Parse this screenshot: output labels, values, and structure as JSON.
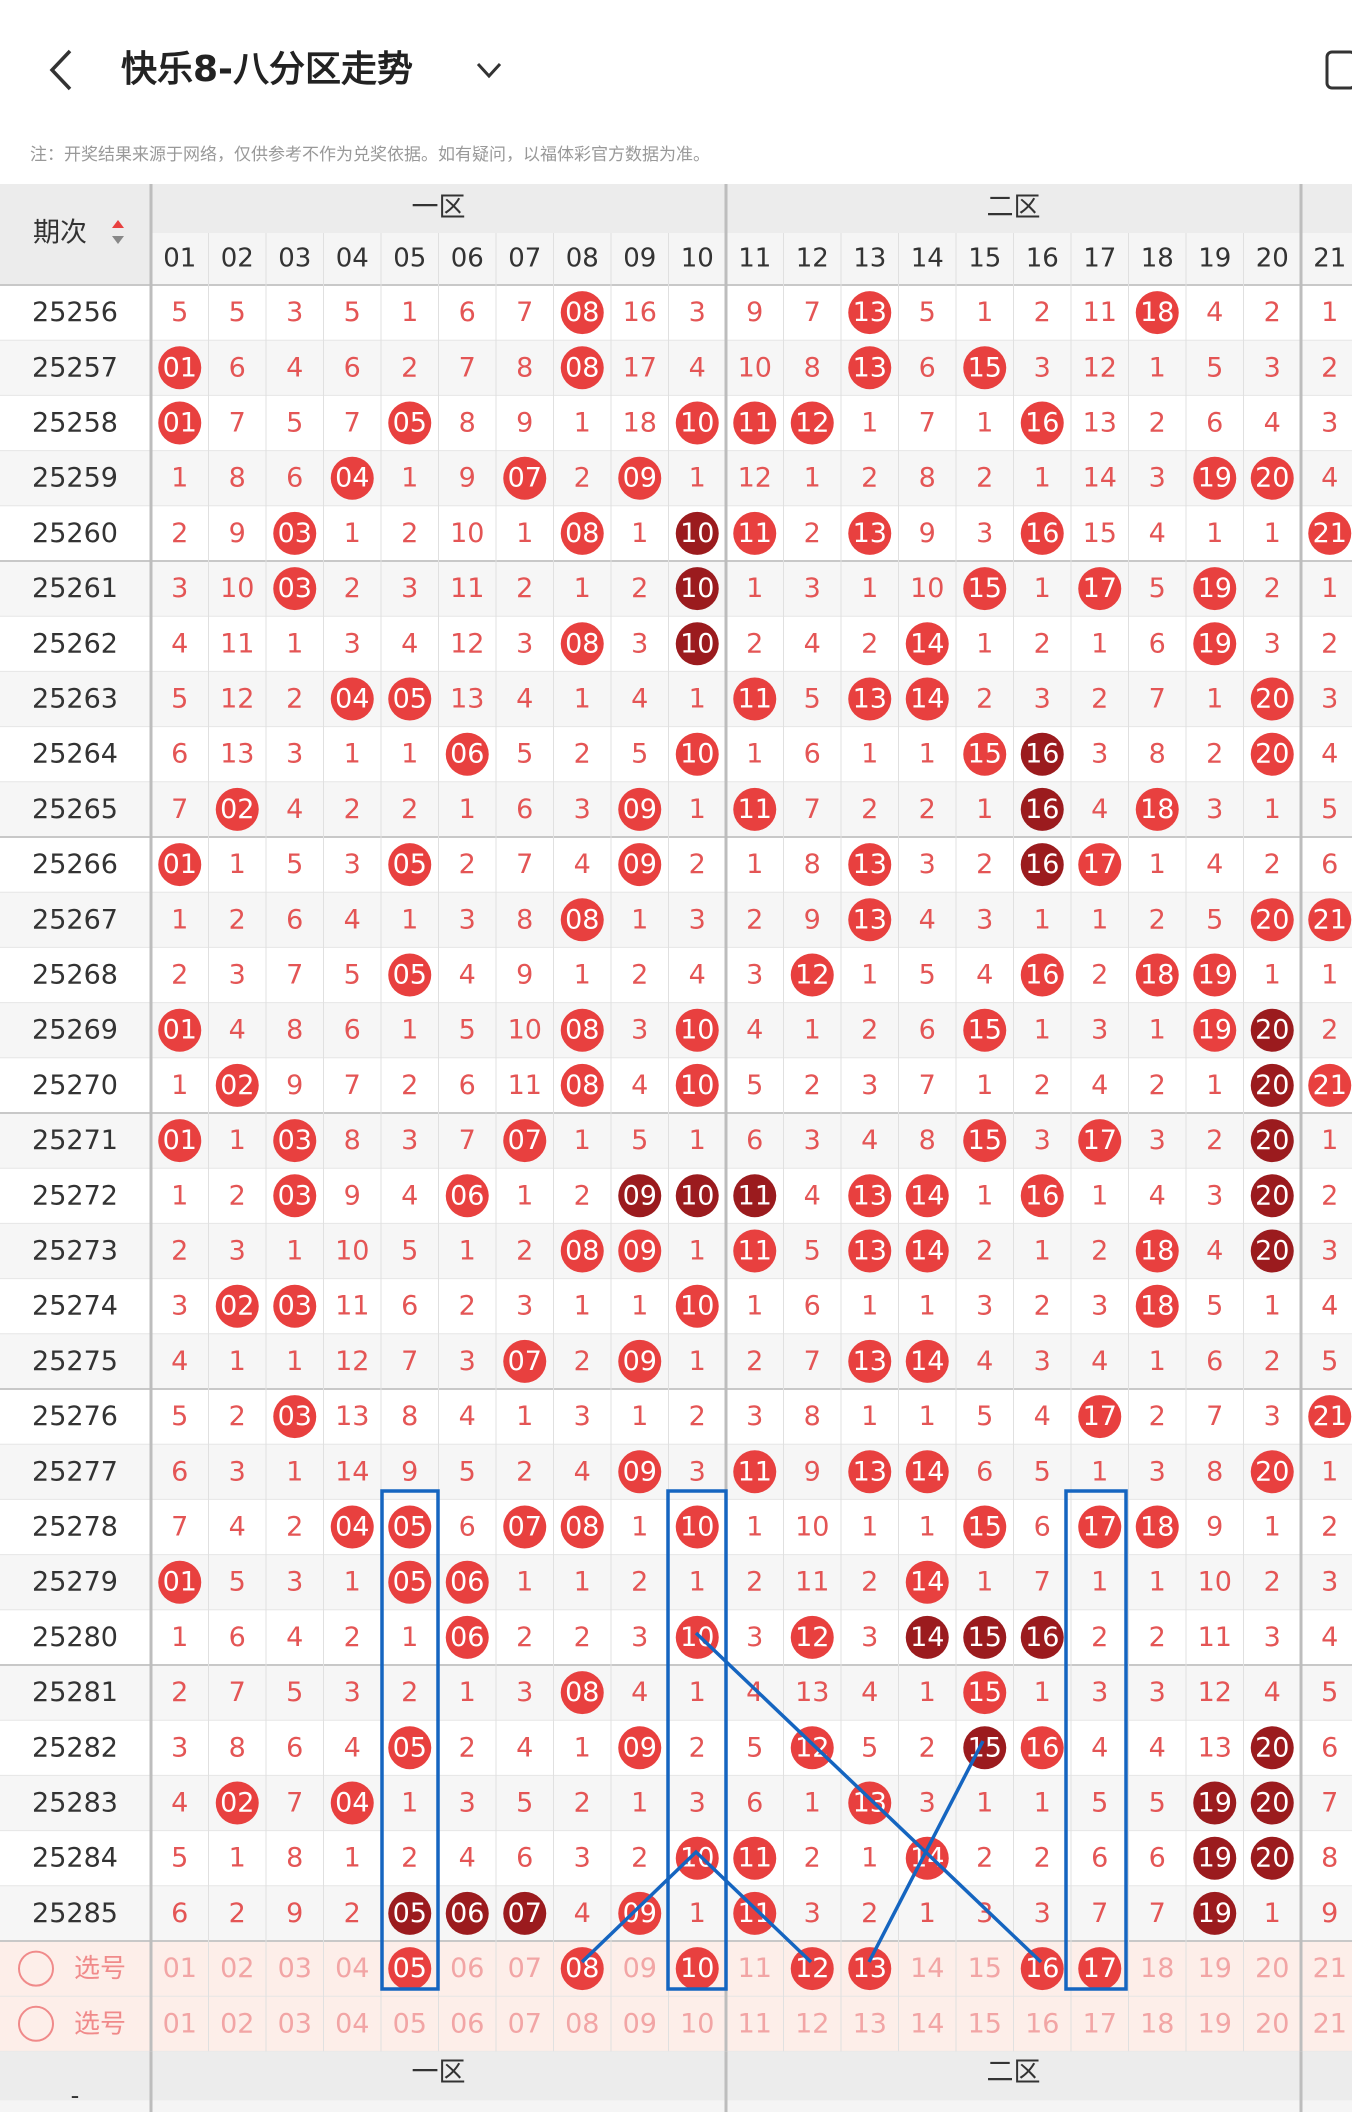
{
  "header": {
    "title": "快乐8-八分区走势",
    "note": "注：开奖结果来源于网络，仅供参考不作为兑奖依据。如有疑问，以福体彩官方数据为准。"
  },
  "table": {
    "period_label": "期次",
    "zones": [
      "一区",
      "二区"
    ],
    "columns": [
      "01",
      "02",
      "03",
      "04",
      "05",
      "06",
      "07",
      "08",
      "09",
      "10",
      "11",
      "12",
      "13",
      "14",
      "15",
      "16",
      "17",
      "18",
      "19",
      "20",
      "21"
    ],
    "rows": [
      {
        "period": "25256",
        "cells": [
          "5",
          "5",
          "3",
          "5",
          "1",
          "6",
          "7",
          "08",
          "16",
          "3",
          "9",
          "7",
          "13",
          "5",
          "1",
          "2",
          "11",
          "18",
          "4",
          "2",
          "1"
        ],
        "dark": []
      },
      {
        "period": "25257",
        "cells": [
          "01",
          "6",
          "4",
          "6",
          "2",
          "7",
          "8",
          "08",
          "17",
          "4",
          "10",
          "8",
          "13",
          "6",
          "15",
          "3",
          "12",
          "1",
          "5",
          "3",
          "2"
        ],
        "dark": []
      },
      {
        "period": "25258",
        "cells": [
          "01",
          "7",
          "5",
          "7",
          "05",
          "8",
          "9",
          "1",
          "18",
          "10",
          "11",
          "12",
          "1",
          "7",
          "1",
          "16",
          "13",
          "2",
          "6",
          "4",
          "3"
        ],
        "dark": []
      },
      {
        "period": "25259",
        "cells": [
          "1",
          "8",
          "6",
          "04",
          "1",
          "9",
          "07",
          "2",
          "09",
          "1",
          "12",
          "1",
          "2",
          "8",
          "2",
          "1",
          "14",
          "3",
          "19",
          "20",
          "4"
        ],
        "dark": []
      },
      {
        "period": "25260",
        "cells": [
          "2",
          "9",
          "03",
          "1",
          "2",
          "10",
          "1",
          "08",
          "1",
          "10",
          "11",
          "2",
          "13",
          "9",
          "3",
          "16",
          "15",
          "4",
          "1",
          "1",
          "21"
        ],
        "dark": [
          "10"
        ]
      },
      {
        "period": "25261",
        "cells": [
          "3",
          "10",
          "03",
          "2",
          "3",
          "11",
          "2",
          "1",
          "2",
          "10",
          "1",
          "3",
          "1",
          "10",
          "15",
          "1",
          "17",
          "5",
          "19",
          "2",
          "1"
        ],
        "dark": [
          "10"
        ]
      },
      {
        "period": "25262",
        "cells": [
          "4",
          "11",
          "1",
          "3",
          "4",
          "12",
          "3",
          "08",
          "3",
          "10",
          "2",
          "4",
          "2",
          "14",
          "1",
          "2",
          "1",
          "6",
          "19",
          "3",
          "2"
        ],
        "dark": [
          "10"
        ]
      },
      {
        "period": "25263",
        "cells": [
          "5",
          "12",
          "2",
          "04",
          "05",
          "13",
          "4",
          "1",
          "4",
          "1",
          "11",
          "5",
          "13",
          "14",
          "2",
          "3",
          "2",
          "7",
          "1",
          "20",
          "3"
        ],
        "dark": []
      },
      {
        "period": "25264",
        "cells": [
          "6",
          "13",
          "3",
          "1",
          "1",
          "06",
          "5",
          "2",
          "5",
          "10",
          "1",
          "6",
          "1",
          "1",
          "15",
          "16",
          "3",
          "8",
          "2",
          "20",
          "4"
        ],
        "dark": [
          "16"
        ]
      },
      {
        "period": "25265",
        "cells": [
          "7",
          "02",
          "4",
          "2",
          "2",
          "1",
          "6",
          "3",
          "09",
          "1",
          "11",
          "7",
          "2",
          "2",
          "1",
          "16",
          "4",
          "18",
          "3",
          "1",
          "5"
        ],
        "dark": [
          "16"
        ]
      },
      {
        "period": "25266",
        "cells": [
          "01",
          "1",
          "5",
          "3",
          "05",
          "2",
          "7",
          "4",
          "09",
          "2",
          "1",
          "8",
          "13",
          "3",
          "2",
          "16",
          "17",
          "1",
          "4",
          "2",
          "6"
        ],
        "dark": [
          "16"
        ]
      },
      {
        "period": "25267",
        "cells": [
          "1",
          "2",
          "6",
          "4",
          "1",
          "3",
          "8",
          "08",
          "1",
          "3",
          "2",
          "9",
          "13",
          "4",
          "3",
          "1",
          "1",
          "2",
          "5",
          "20",
          "21"
        ],
        "dark": []
      },
      {
        "period": "25268",
        "cells": [
          "2",
          "3",
          "7",
          "5",
          "05",
          "4",
          "9",
          "1",
          "2",
          "4",
          "3",
          "12",
          "1",
          "5",
          "4",
          "16",
          "2",
          "18",
          "19",
          "1",
          "1"
        ],
        "dark": []
      },
      {
        "period": "25269",
        "cells": [
          "01",
          "4",
          "8",
          "6",
          "1",
          "5",
          "10",
          "08",
          "3",
          "10",
          "4",
          "1",
          "2",
          "6",
          "15",
          "1",
          "3",
          "1",
          "19",
          "20",
          "2"
        ],
        "dark": [
          "20"
        ]
      },
      {
        "period": "25270",
        "cells": [
          "1",
          "02",
          "9",
          "7",
          "2",
          "6",
          "11",
          "08",
          "4",
          "10",
          "5",
          "2",
          "3",
          "7",
          "1",
          "2",
          "4",
          "2",
          "1",
          "20",
          "21"
        ],
        "dark": [
          "20"
        ]
      },
      {
        "period": "25271",
        "cells": [
          "01",
          "1",
          "03",
          "8",
          "3",
          "7",
          "07",
          "1",
          "5",
          "1",
          "6",
          "3",
          "4",
          "8",
          "15",
          "3",
          "17",
          "3",
          "2",
          "20",
          "1"
        ],
        "dark": [
          "20"
        ]
      },
      {
        "period": "25272",
        "cells": [
          "1",
          "2",
          "03",
          "9",
          "4",
          "06",
          "1",
          "2",
          "09",
          "10",
          "11",
          "4",
          "13",
          "14",
          "1",
          "16",
          "1",
          "4",
          "3",
          "20",
          "2"
        ],
        "dark": [
          "09",
          "10",
          "11",
          "20"
        ]
      },
      {
        "period": "25273",
        "cells": [
          "2",
          "3",
          "1",
          "10",
          "5",
          "1",
          "2",
          "08",
          "09",
          "1",
          "11",
          "5",
          "13",
          "14",
          "2",
          "1",
          "2",
          "18",
          "4",
          "20",
          "3"
        ],
        "dark": [
          "20"
        ]
      },
      {
        "period": "25274",
        "cells": [
          "3",
          "02",
          "03",
          "11",
          "6",
          "2",
          "3",
          "1",
          "1",
          "10",
          "1",
          "6",
          "1",
          "1",
          "3",
          "2",
          "3",
          "18",
          "5",
          "1",
          "4"
        ],
        "dark": []
      },
      {
        "period": "25275",
        "cells": [
          "4",
          "1",
          "1",
          "12",
          "7",
          "3",
          "07",
          "2",
          "09",
          "1",
          "2",
          "7",
          "13",
          "14",
          "4",
          "3",
          "4",
          "1",
          "6",
          "2",
          "5"
        ],
        "dark": []
      },
      {
        "period": "25276",
        "cells": [
          "5",
          "2",
          "03",
          "13",
          "8",
          "4",
          "1",
          "3",
          "1",
          "2",
          "3",
          "8",
          "1",
          "1",
          "5",
          "4",
          "17",
          "2",
          "7",
          "3",
          "21"
        ],
        "dark": []
      },
      {
        "period": "25277",
        "cells": [
          "6",
          "3",
          "1",
          "14",
          "9",
          "5",
          "2",
          "4",
          "09",
          "3",
          "11",
          "9",
          "13",
          "14",
          "6",
          "5",
          "1",
          "3",
          "8",
          "20",
          "1"
        ],
        "dark": []
      },
      {
        "period": "25278",
        "cells": [
          "7",
          "4",
          "2",
          "04",
          "05",
          "6",
          "07",
          "08",
          "1",
          "10",
          "1",
          "10",
          "1",
          "1",
          "15",
          "6",
          "17",
          "18",
          "9",
          "1",
          "2"
        ],
        "dark": []
      },
      {
        "period": "25279",
        "cells": [
          "01",
          "5",
          "3",
          "1",
          "05",
          "06",
          "1",
          "1",
          "2",
          "1",
          "2",
          "11",
          "2",
          "14",
          "1",
          "7",
          "1",
          "1",
          "10",
          "2",
          "3"
        ],
        "dark": []
      },
      {
        "period": "25280",
        "cells": [
          "1",
          "6",
          "4",
          "2",
          "1",
          "06",
          "2",
          "2",
          "3",
          "10",
          "3",
          "12",
          "3",
          "14",
          "15",
          "16",
          "2",
          "2",
          "11",
          "3",
          "4"
        ],
        "dark": [
          "14",
          "15",
          "16"
        ]
      },
      {
        "period": "25281",
        "cells": [
          "2",
          "7",
          "5",
          "3",
          "2",
          "1",
          "3",
          "08",
          "4",
          "1",
          "4",
          "13",
          "4",
          "1",
          "15",
          "1",
          "3",
          "3",
          "12",
          "4",
          "5"
        ],
        "dark": []
      },
      {
        "period": "25282",
        "cells": [
          "3",
          "8",
          "6",
          "4",
          "05",
          "2",
          "4",
          "1",
          "09",
          "2",
          "5",
          "12",
          "5",
          "2",
          "15",
          "16",
          "4",
          "4",
          "13",
          "20",
          "6"
        ],
        "dark": [
          "15",
          "20"
        ]
      },
      {
        "period": "25283",
        "cells": [
          "4",
          "02",
          "7",
          "04",
          "1",
          "3",
          "5",
          "2",
          "1",
          "3",
          "6",
          "1",
          "13",
          "3",
          "1",
          "1",
          "5",
          "5",
          "19",
          "20",
          "7"
        ],
        "dark": [
          "19",
          "20"
        ]
      },
      {
        "period": "25284",
        "cells": [
          "5",
          "1",
          "8",
          "1",
          "2",
          "4",
          "6",
          "3",
          "2",
          "10",
          "11",
          "2",
          "1",
          "14",
          "2",
          "2",
          "6",
          "6",
          "19",
          "20",
          "8"
        ],
        "dark": [
          "19",
          "20"
        ]
      },
      {
        "period": "25285",
        "cells": [
          "6",
          "2",
          "9",
          "2",
          "05",
          "06",
          "07",
          "4",
          "09",
          "1",
          "11",
          "3",
          "2",
          "1",
          "3",
          "3",
          "7",
          "7",
          "19",
          "1",
          "9"
        ],
        "dark": [
          "05",
          "06",
          "07",
          "19"
        ]
      }
    ],
    "select_rows": [
      {
        "label": "选号",
        "cells": [
          "01",
          "02",
          "03",
          "04",
          "05",
          "06",
          "07",
          "08",
          "09",
          "10",
          "11",
          "12",
          "13",
          "14",
          "15",
          "16",
          "17",
          "18",
          "19",
          "20",
          "21"
        ],
        "picked": [
          "05",
          "08",
          "10",
          "12",
          "13",
          "16",
          "17"
        ]
      },
      {
        "label": "选号",
        "cells": [
          "01",
          "02",
          "03",
          "04",
          "05",
          "06",
          "07",
          "08",
          "09",
          "10",
          "11",
          "12",
          "13",
          "14",
          "15",
          "16",
          "17",
          "18",
          "19",
          "20",
          "21"
        ],
        "picked": []
      }
    ],
    "footer": {
      "period_label": "-",
      "zones": [
        "一区",
        "二区"
      ]
    }
  }
}
